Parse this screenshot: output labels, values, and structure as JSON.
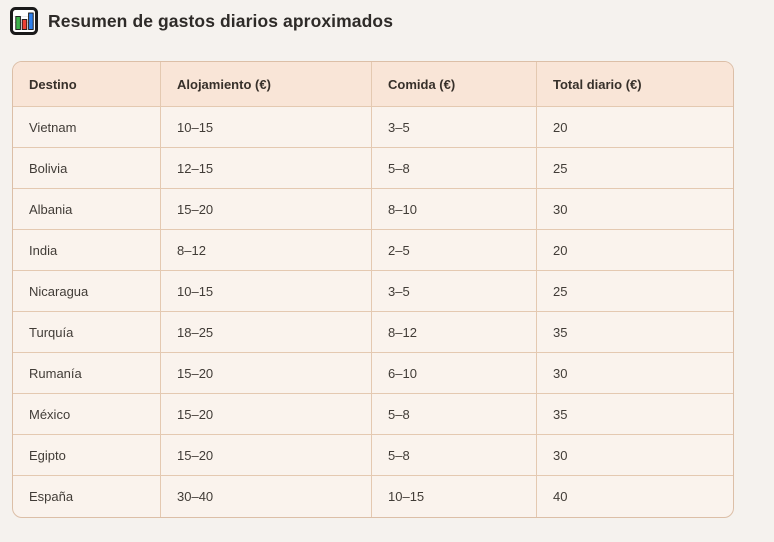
{
  "title": {
    "text": "Resumen de gastos diarios aproximados",
    "icon": "bar-chart-icon"
  },
  "colors": {
    "page_bg": "#f5f2ee",
    "table_header_bg": "#f9e5d7",
    "table_row_bg": "#faf3ed",
    "table_border": "#dcbfa7",
    "cell_separator": "#e4c9b1",
    "title_text": "#2e2b28",
    "header_text": "#37302a",
    "cell_text": "#413c37",
    "icon_green": "#3db14c",
    "icon_red": "#ee4034",
    "icon_blue": "#2f80ed"
  },
  "table": {
    "columns": [
      "Destino",
      "Alojamiento (€)",
      "Comida (€)",
      "Total diario (€)"
    ],
    "rows": [
      [
        "Vietnam",
        "10–15",
        "3–5",
        "20"
      ],
      [
        "Bolivia",
        "12–15",
        "5–8",
        "25"
      ],
      [
        "Albania",
        "15–20",
        "8–10",
        "30"
      ],
      [
        "India",
        "8–12",
        "2–5",
        "20"
      ],
      [
        "Nicaragua",
        "10–15",
        "3–5",
        "25"
      ],
      [
        "Turquía",
        "18–25",
        "8–12",
        "35"
      ],
      [
        "Rumanía",
        "15–20",
        "6–10",
        "30"
      ],
      [
        "México",
        "15–20",
        "5–8",
        "35"
      ],
      [
        "Egipto",
        "15–20",
        "5–8",
        "30"
      ],
      [
        "España",
        "30–40",
        "10–15",
        "40"
      ]
    ]
  }
}
